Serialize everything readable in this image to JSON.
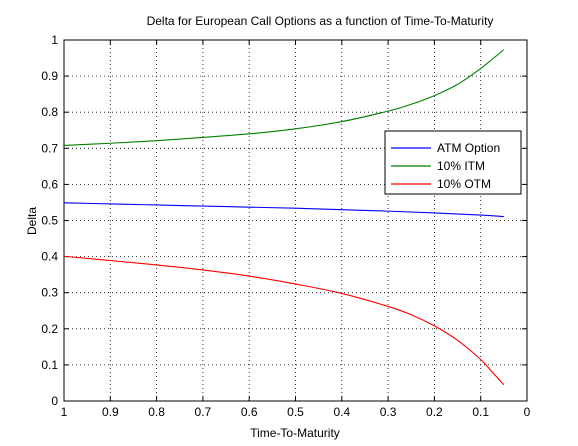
{
  "chart_data": {
    "type": "line",
    "title": "Delta for European Call Options as a function of Time-To-Maturity",
    "xlabel": "Time-To-Maturity",
    "ylabel": "Delta",
    "xlim": [
      1,
      0
    ],
    "ylim": [
      0,
      1
    ],
    "x_reversed": true,
    "grid": true,
    "legend_position": "right, upper-middle",
    "xticks": [
      1,
      0.9,
      0.8,
      0.7,
      0.6,
      0.5,
      0.4,
      0.3,
      0.2,
      0.1,
      0
    ],
    "xtick_labels": [
      "1",
      "0.9",
      "0.8",
      "0.7",
      "0.6",
      "0.5",
      "0.4",
      "0.3",
      "0.2",
      "0.1",
      "0"
    ],
    "yticks": [
      0,
      0.1,
      0.2,
      0.3,
      0.4,
      0.5,
      0.6,
      0.7,
      0.8,
      0.9,
      1
    ],
    "ytick_labels": [
      "0",
      "0.1",
      "0.2",
      "0.3",
      "0.4",
      "0.5",
      "0.6",
      "0.7",
      "0.8",
      "0.9",
      "1"
    ],
    "series": [
      {
        "name": "ATM Option",
        "color": "#0000ff",
        "x": [
          1.0,
          0.9,
          0.8,
          0.7,
          0.6,
          0.5,
          0.4,
          0.3,
          0.2,
          0.1,
          0.05
        ],
        "y": [
          0.549,
          0.546,
          0.543,
          0.54,
          0.537,
          0.534,
          0.53,
          0.526,
          0.521,
          0.515,
          0.511
        ]
      },
      {
        "name": "10% ITM",
        "color": "#008000",
        "x": [
          1.0,
          0.9,
          0.8,
          0.7,
          0.6,
          0.5,
          0.4,
          0.3,
          0.25,
          0.2,
          0.15,
          0.1,
          0.075,
          0.05
        ],
        "y": [
          0.708,
          0.714,
          0.721,
          0.73,
          0.74,
          0.754,
          0.774,
          0.803,
          0.822,
          0.846,
          0.877,
          0.921,
          0.947,
          0.973
        ]
      },
      {
        "name": "10% OTM",
        "color": "#ff0000",
        "x": [
          1.0,
          0.9,
          0.8,
          0.7,
          0.6,
          0.5,
          0.4,
          0.3,
          0.25,
          0.2,
          0.15,
          0.1,
          0.075,
          0.05
        ],
        "y": [
          0.401,
          0.389,
          0.377,
          0.363,
          0.346,
          0.324,
          0.298,
          0.262,
          0.239,
          0.208,
          0.168,
          0.115,
          0.08,
          0.045
        ]
      }
    ]
  }
}
